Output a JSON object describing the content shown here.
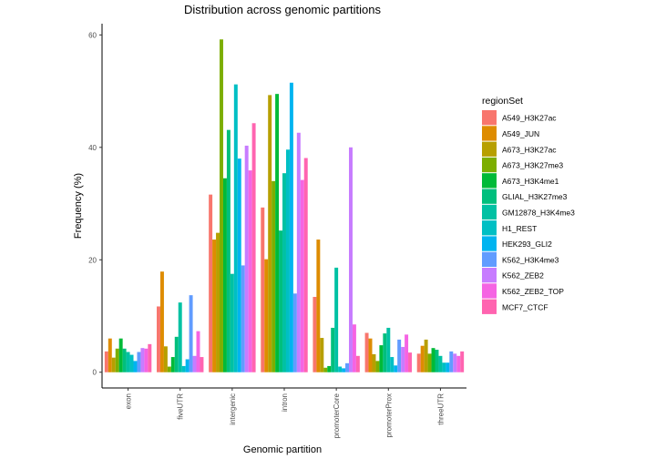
{
  "chart_data": {
    "type": "bar",
    "title": "Distribution across genomic partitions",
    "xlabel": "Genomic partition",
    "ylabel": "Frequency (%)",
    "ylim": [
      -2.8,
      62
    ],
    "yticks": [
      0,
      20,
      40,
      60
    ],
    "grid": false,
    "legend": {
      "title": "regionSet",
      "position": "right"
    },
    "categories": [
      "exon",
      "fiveUTR",
      "intergenic",
      "intron",
      "promoterCore",
      "promoterProx",
      "threeUTR"
    ],
    "series": [
      {
        "name": "A549_H3K27ac",
        "color": "#F8766D",
        "values": [
          3.7,
          11.7,
          31.6,
          29.3,
          13.4,
          7.0,
          3.3
        ]
      },
      {
        "name": "A549_JUN",
        "color": "#DE8C00",
        "values": [
          6.0,
          17.9,
          23.6,
          20.1,
          23.6,
          6.0,
          4.7
        ]
      },
      {
        "name": "A673_H3K27ac",
        "color": "#B79F00",
        "values": [
          2.6,
          4.6,
          24.8,
          49.3,
          6.1,
          3.2,
          5.8
        ]
      },
      {
        "name": "A673_H3K27me3",
        "color": "#7CAE00",
        "values": [
          4.2,
          1.0,
          59.2,
          34.0,
          0.8,
          2.0,
          3.3
        ]
      },
      {
        "name": "A673_H3K4me1",
        "color": "#00BA38",
        "values": [
          6.0,
          2.7,
          34.5,
          49.5,
          1.1,
          4.8,
          4.3
        ]
      },
      {
        "name": "GLIAL_H3K27me3",
        "color": "#00BF7D",
        "values": [
          4.2,
          6.3,
          43.1,
          25.2,
          7.9,
          6.9,
          4.0
        ]
      },
      {
        "name": "GM12878_H3K4me3",
        "color": "#00C1A3",
        "values": [
          3.6,
          12.4,
          17.5,
          35.4,
          18.6,
          7.9,
          2.9
        ]
      },
      {
        "name": "H1_REST",
        "color": "#00BFC4",
        "values": [
          3.1,
          1.1,
          51.2,
          39.6,
          1.0,
          2.7,
          1.7
        ]
      },
      {
        "name": "HEK293_GLI2",
        "color": "#00B4F0",
        "values": [
          2.0,
          2.3,
          38.0,
          51.5,
          0.7,
          1.2,
          1.7
        ]
      },
      {
        "name": "K562_H3K4me3",
        "color": "#619CFF",
        "values": [
          3.6,
          13.7,
          19.0,
          14.0,
          1.6,
          5.8,
          3.7
        ]
      },
      {
        "name": "K562_ZEB2",
        "color": "#C77CFF",
        "values": [
          4.3,
          2.9,
          40.3,
          42.6,
          40.0,
          4.5,
          3.3
        ]
      },
      {
        "name": "K562_ZEB2_TOP",
        "color": "#F564E3",
        "values": [
          4.2,
          7.3,
          35.9,
          34.2,
          8.5,
          6.7,
          2.9
        ]
      },
      {
        "name": "MCF7_CTCF",
        "color": "#FF64B0",
        "values": [
          5.0,
          2.7,
          44.3,
          38.1,
          2.9,
          3.5,
          3.7
        ]
      }
    ]
  }
}
